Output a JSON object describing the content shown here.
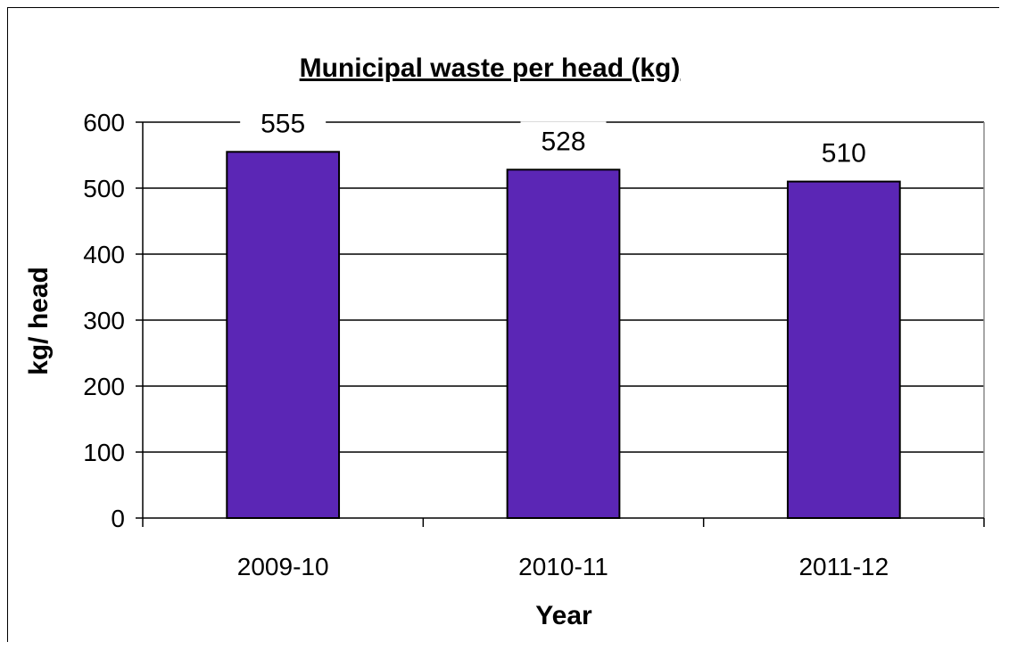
{
  "chart_data": {
    "type": "bar",
    "title": "Municipal waste per head (kg)",
    "xlabel": "Year",
    "ylabel": "kg/ head",
    "categories": [
      "2009-10",
      "2010-11",
      "2011-12"
    ],
    "values": [
      555,
      528,
      510
    ],
    "data_labels": [
      "555",
      "528",
      "510"
    ],
    "ylim": [
      0,
      600
    ],
    "yticks": [
      0,
      100,
      200,
      300,
      400,
      500,
      600
    ],
    "grid": true,
    "legend": "none",
    "bar_color": "#5B26B5",
    "bar_edge_color": "#000000"
  }
}
